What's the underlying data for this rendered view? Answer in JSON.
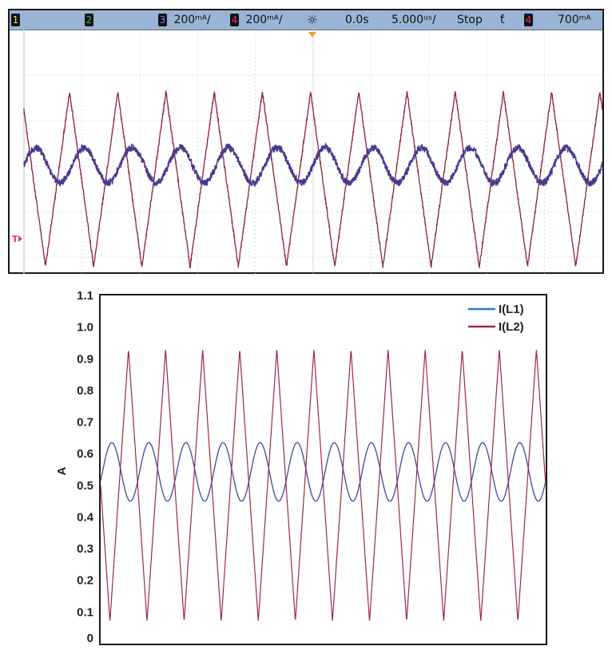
{
  "scope": {
    "ch1": "1",
    "ch2": "2",
    "ch3": "3",
    "ch3_scale": "200ᵐᴬ/",
    "ch4": "4",
    "ch4_scale": "200ᵐᴬ/",
    "trigger_symbol": "☼",
    "delay": "0.0s",
    "timebase": "5.000ᵘˢ/",
    "status": "Stop",
    "trigger_slope": "ƭ",
    "trigger_channel": "4",
    "trigger_level": "700ᵐᴬ",
    "trigger_marker": "T",
    "colors": {
      "bar": "#9ab4d6",
      "ch1": "#f0e64a",
      "ch2": "#43c44a",
      "ch3": "#6e86e8",
      "ch4": "#e8307a",
      "trace3": "#4a3a8e",
      "trace4": "#8c1f3c",
      "grid": "#d5d5d5"
    }
  },
  "chart_data": {
    "type": "line",
    "title": "",
    "xlabel": "",
    "ylabel": "A",
    "ylim": [
      0,
      1.1
    ],
    "yticks": [
      "0",
      "0.1",
      "0.2",
      "0.3",
      "0.4",
      "0.5",
      "0.6",
      "0.7",
      "0.8",
      "0.9",
      "1.0",
      "1.1"
    ],
    "grid": false,
    "legend_position": "top-right",
    "cycles": 12,
    "series": [
      {
        "name": "I(L1)",
        "shape": "sinusoid",
        "min": 0.45,
        "max": 0.635,
        "color": "#2e78c4",
        "plot_color": "#3a4a9a"
      },
      {
        "name": "I(L2)",
        "shape": "triangle",
        "min": 0.07,
        "max": 0.93,
        "color": "#9b2a45",
        "plot_color": "#9b2a45"
      }
    ]
  }
}
